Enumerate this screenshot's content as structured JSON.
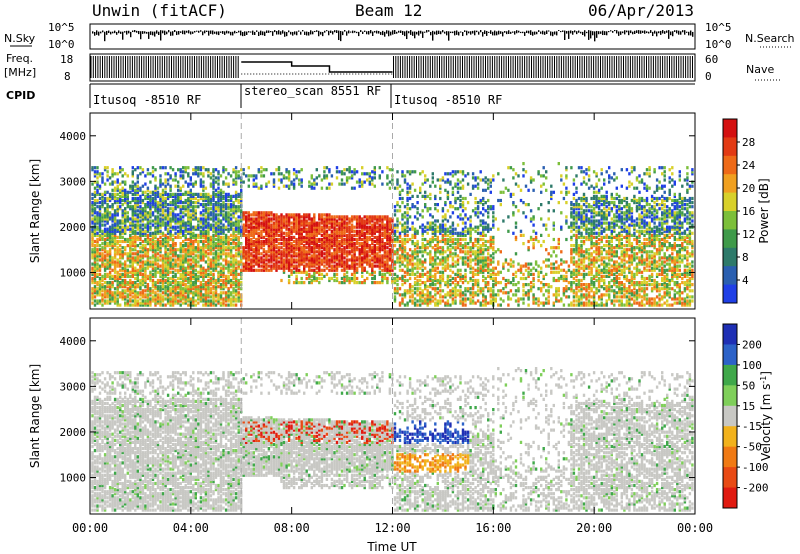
{
  "header": {
    "title": "Unwin (fitACF)",
    "beam": "Beam 12",
    "date": "06/Apr/2013"
  },
  "status_panels": {
    "nsky_label": "N.Sky",
    "freq_label_1": "Freq.",
    "freq_label_2": "[MHz]",
    "cpid_label": "CPID",
    "nsearch_label": "N.Search",
    "nave_label": "Nave",
    "noise_ticks_left": [
      "10^5",
      "10^0"
    ],
    "noise_ticks_right": [
      "10^5",
      "10^0"
    ],
    "freq_ticks": [
      "18",
      "8"
    ],
    "nave_ticks": [
      "60",
      "0"
    ],
    "cpid_segments": [
      {
        "label": "Itusoq -8510 RF",
        "start_h": 0,
        "end_h": 6
      },
      {
        "label": "stereo_scan 8551 RF",
        "start_h": 6,
        "end_h": 12
      },
      {
        "label": "Itusoq -8510 RF",
        "start_h": 12,
        "end_h": 24
      }
    ]
  },
  "chart_data": [
    {
      "type": "heatmap",
      "name": "power",
      "ylabel": "Slant Range [km]",
      "yticks": [
        "1000",
        "2000",
        "3000",
        "4000"
      ],
      "ylim": [
        200,
        4500
      ],
      "xlim": [
        0,
        24
      ],
      "colorbar": {
        "label": "Power [dB]",
        "ticks": [
          "4",
          "8",
          "12",
          "16",
          "20",
          "24",
          "28"
        ],
        "range": [
          0,
          32
        ],
        "colors": [
          "#1f3fe6",
          "#2a5fb0",
          "#2e7a6a",
          "#3f9a4a",
          "#7cbf3a",
          "#d8d02a",
          "#f0a020",
          "#ee6a18",
          "#e23a14",
          "#d41010"
        ]
      }
    },
    {
      "type": "heatmap",
      "name": "velocity",
      "ylabel": "Slant Range [km]",
      "yticks": [
        "1000",
        "2000",
        "3000",
        "4000"
      ],
      "ylim": [
        200,
        4500
      ],
      "xlim": [
        0,
        24
      ],
      "colorbar": {
        "label": "Velocity [m s-1]",
        "label_main": "Velocity [m s",
        "label_sup": "-1",
        "label_end": "]",
        "ticks": [
          "200",
          "100",
          "50",
          "15",
          "-15",
          "-50",
          "-100",
          "-200"
        ],
        "colors": [
          "#1e2fb4",
          "#2c62c8",
          "#3fa84a",
          "#7fcf5a",
          "#c8c8c4",
          "#f2b21c",
          "#f07a14",
          "#e84a14",
          "#e01a10"
        ]
      }
    }
  ],
  "xaxis": {
    "label": "Time UT",
    "ticks": [
      "00:00",
      "04:00",
      "08:00",
      "12:00",
      "16:00",
      "20:00",
      "00:00"
    ]
  }
}
